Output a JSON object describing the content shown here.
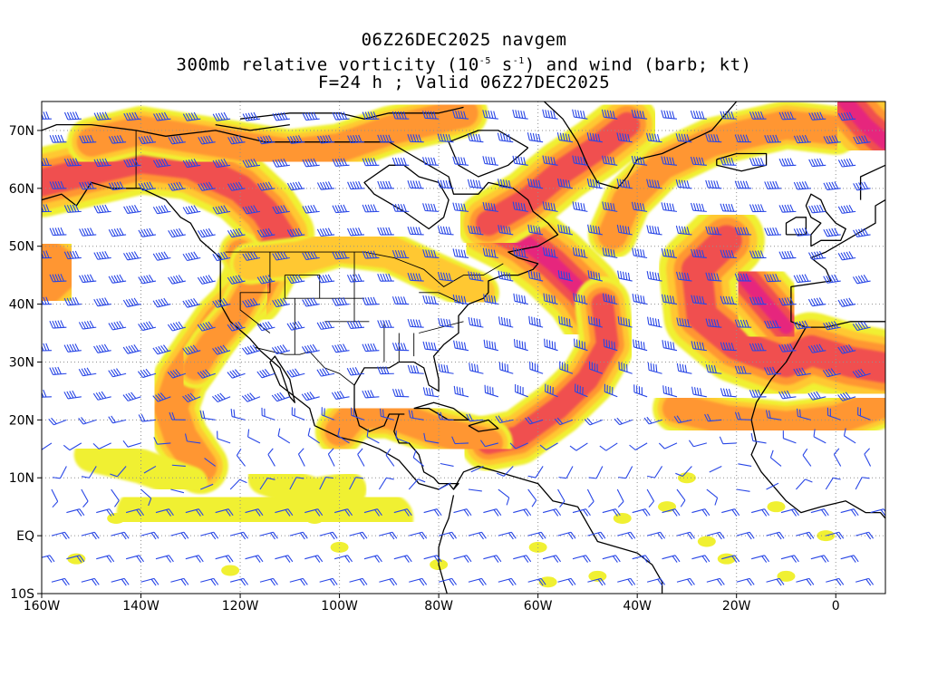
{
  "header": {
    "line1": "06Z26DEC2025 navgem",
    "line2_prefix": "300mb relative vorticity (10",
    "line2_exp1": "-5",
    "line2_mid": " s",
    "line2_exp2": "-1",
    "line2_suffix": ") and wind (barb; kt)",
    "line3": "F=24 h ; Valid 06Z27DEC2025"
  },
  "map": {
    "projection": "lat-lon",
    "lon_range": [
      -160,
      10
    ],
    "lat_range": [
      -10,
      75
    ],
    "x_ticks": [
      {
        "lon": -160,
        "label": "160W"
      },
      {
        "lon": -140,
        "label": "140W"
      },
      {
        "lon": -120,
        "label": "120W"
      },
      {
        "lon": -100,
        "label": "100W"
      },
      {
        "lon": -80,
        "label": "80W"
      },
      {
        "lon": -60,
        "label": "60W"
      },
      {
        "lon": -40,
        "label": "40W"
      },
      {
        "lon": -20,
        "label": "20W"
      },
      {
        "lon": 0,
        "label": "0"
      }
    ],
    "y_ticks": [
      {
        "lat": 70,
        "label": "70N"
      },
      {
        "lat": 60,
        "label": "60N"
      },
      {
        "lat": 50,
        "label": "50N"
      },
      {
        "lat": 40,
        "label": "40N"
      },
      {
        "lat": 30,
        "label": "30N"
      },
      {
        "lat": 20,
        "label": "20N"
      },
      {
        "lat": 10,
        "label": "10N"
      },
      {
        "lat": 0,
        "label": "EQ"
      },
      {
        "lat": -10,
        "label": "10S"
      }
    ],
    "grid": "dotted",
    "colors": {
      "fill_level_1": "#f0f032",
      "fill_level_2": "#ffc832",
      "fill_level_3": "#ff9632",
      "fill_level_4": "#f05050",
      "fill_level_5": "#e6287d",
      "barbs": "#2846e6",
      "coastline": "#000000"
    }
  }
}
